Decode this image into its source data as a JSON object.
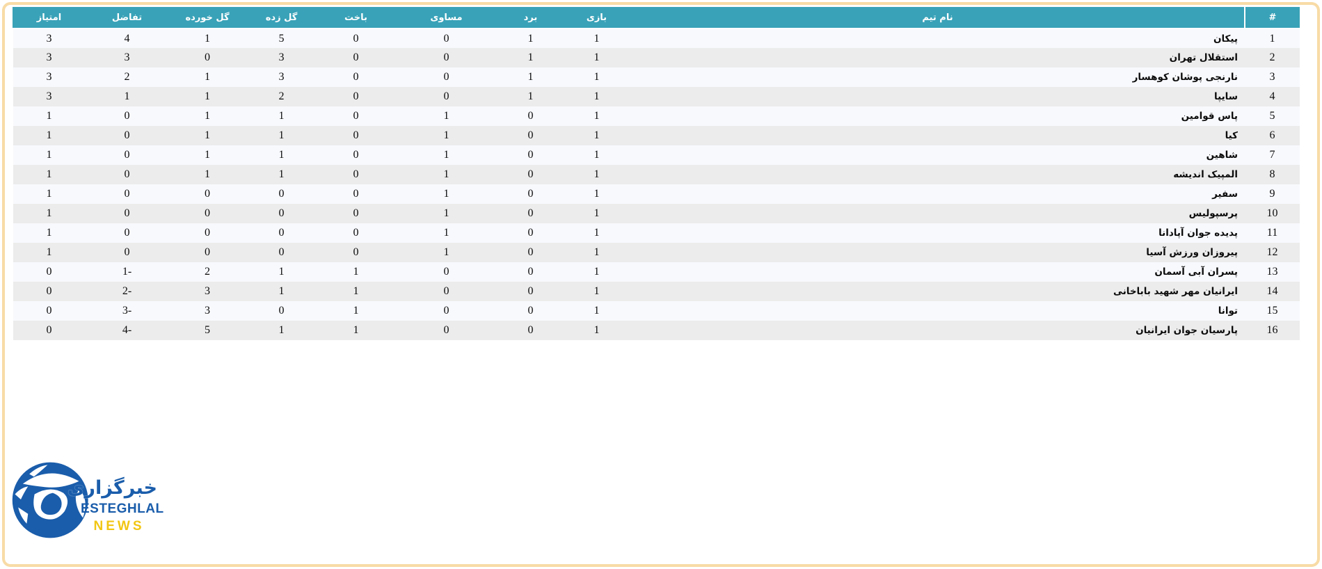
{
  "page": {
    "frame_border_color": "#f8dba6",
    "background_color": "#ffffff"
  },
  "table": {
    "header_bg_color": "#39a2b8",
    "header_text_color": "#ffffff",
    "row_odd_color": "#f8f9fd",
    "row_even_color": "#ececec",
    "columns": [
      {
        "key": "rank",
        "label": "#"
      },
      {
        "key": "team",
        "label": "نام تیم"
      },
      {
        "key": "played",
        "label": "بازی"
      },
      {
        "key": "won",
        "label": "برد"
      },
      {
        "key": "drawn",
        "label": "مساوی"
      },
      {
        "key": "lost",
        "label": "باخت"
      },
      {
        "key": "gf",
        "label": "گل زده"
      },
      {
        "key": "ga",
        "label": "گل خورده"
      },
      {
        "key": "gd",
        "label": "تفاضل"
      },
      {
        "key": "points",
        "label": "امتیاز"
      }
    ],
    "rows": [
      {
        "rank": 1,
        "team": "پیکان",
        "played": 1,
        "won": 1,
        "drawn": 0,
        "lost": 0,
        "gf": 5,
        "ga": 1,
        "gd": 4,
        "points": 3
      },
      {
        "rank": 2,
        "team": "استقلال تهران",
        "played": 1,
        "won": 1,
        "drawn": 0,
        "lost": 0,
        "gf": 3,
        "ga": 0,
        "gd": 3,
        "points": 3
      },
      {
        "rank": 3,
        "team": "نارنجی پوشان کوهسار",
        "played": 1,
        "won": 1,
        "drawn": 0,
        "lost": 0,
        "gf": 3,
        "ga": 1,
        "gd": 2,
        "points": 3
      },
      {
        "rank": 4,
        "team": "سایپا",
        "played": 1,
        "won": 1,
        "drawn": 0,
        "lost": 0,
        "gf": 2,
        "ga": 1,
        "gd": 1,
        "points": 3
      },
      {
        "rank": 5,
        "team": "پاس قوامین",
        "played": 1,
        "won": 0,
        "drawn": 1,
        "lost": 0,
        "gf": 1,
        "ga": 1,
        "gd": 0,
        "points": 1
      },
      {
        "rank": 6,
        "team": "کیا",
        "played": 1,
        "won": 0,
        "drawn": 1,
        "lost": 0,
        "gf": 1,
        "ga": 1,
        "gd": 0,
        "points": 1
      },
      {
        "rank": 7,
        "team": "شاهین",
        "played": 1,
        "won": 0,
        "drawn": 1,
        "lost": 0,
        "gf": 1,
        "ga": 1,
        "gd": 0,
        "points": 1
      },
      {
        "rank": 8,
        "team": "المپیک اندیشه",
        "played": 1,
        "won": 0,
        "drawn": 1,
        "lost": 0,
        "gf": 1,
        "ga": 1,
        "gd": 0,
        "points": 1
      },
      {
        "rank": 9,
        "team": "سفیر",
        "played": 1,
        "won": 0,
        "drawn": 1,
        "lost": 0,
        "gf": 0,
        "ga": 0,
        "gd": 0,
        "points": 1
      },
      {
        "rank": 10,
        "team": "پرسپولیس",
        "played": 1,
        "won": 0,
        "drawn": 1,
        "lost": 0,
        "gf": 0,
        "ga": 0,
        "gd": 0,
        "points": 1
      },
      {
        "rank": 11,
        "team": "پدیده جوان آپادانا",
        "played": 1,
        "won": 0,
        "drawn": 1,
        "lost": 0,
        "gf": 0,
        "ga": 0,
        "gd": 0,
        "points": 1
      },
      {
        "rank": 12,
        "team": "پیروزان ورزش آسیا",
        "played": 1,
        "won": 0,
        "drawn": 1,
        "lost": 0,
        "gf": 0,
        "ga": 0,
        "gd": 0,
        "points": 1
      },
      {
        "rank": 13,
        "team": "پسران آبی آسمان",
        "played": 1,
        "won": 0,
        "drawn": 0,
        "lost": 1,
        "gf": 1,
        "ga": 2,
        "gd": -1,
        "points": 0
      },
      {
        "rank": 14,
        "team": "ایرانیان مهر شهید باباخانی",
        "played": 1,
        "won": 0,
        "drawn": 0,
        "lost": 1,
        "gf": 1,
        "ga": 3,
        "gd": -2,
        "points": 0
      },
      {
        "rank": 15,
        "team": "توانا",
        "played": 1,
        "won": 0,
        "drawn": 0,
        "lost": 1,
        "gf": 0,
        "ga": 3,
        "gd": -3,
        "points": 0
      },
      {
        "rank": 16,
        "team": "پارسیان جوان ایرانیان",
        "played": 1,
        "won": 0,
        "drawn": 0,
        "lost": 1,
        "gf": 1,
        "ga": 5,
        "gd": -4,
        "points": 0
      }
    ]
  },
  "logo": {
    "agency_fa": "خبرگزاری",
    "brand_en": "ESTEGHLAL",
    "brand_news": "NEWS",
    "ball_color": "#1a5dab",
    "news_color": "#f2c613"
  }
}
